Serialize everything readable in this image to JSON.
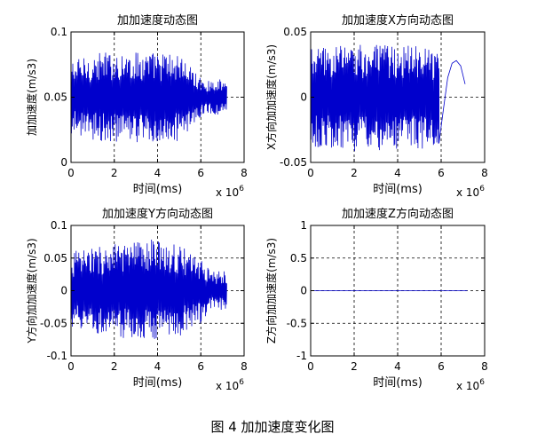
{
  "figure": {
    "caption": "图 4  加加速度变化图"
  },
  "chart_data": [
    {
      "type": "line",
      "title": "加加速度动态图",
      "xlabel": "时间(ms)",
      "ylabel": "加加速度(m/s3)",
      "x_multiplier": "x 10^6",
      "x_multiplier_base": "x 10",
      "x_multiplier_exp": "6",
      "xlim": [
        0,
        8
      ],
      "ylim": [
        0,
        0.1
      ],
      "xticks": [
        "0",
        "2",
        "4",
        "6",
        "8"
      ],
      "yticks": [
        "0",
        "0.05",
        "0.1"
      ],
      "ytick_values": [
        0,
        0.05,
        0.1
      ],
      "grid": true,
      "series": [
        {
          "color": "#0000cc",
          "signal": {
            "kind": "oscillation",
            "x_start": 0,
            "x_end": 7.2,
            "center": 0.05,
            "amplitude_envelope": [
              [
                0,
                0.028
              ],
              [
                1.5,
                0.035
              ],
              [
                3.5,
                0.035
              ],
              [
                5.0,
                0.034
              ],
              [
                5.8,
                0.018
              ],
              [
                6.2,
                0.012
              ],
              [
                6.9,
                0.014
              ],
              [
                7.2,
                0.011
              ]
            ],
            "cycles": 180
          }
        }
      ]
    },
    {
      "type": "line",
      "title": "加加速度X方向动态图",
      "xlabel": "时间(ms)",
      "ylabel": "X方向加加速度(m/s3)",
      "x_multiplier": "x 10^6",
      "x_multiplier_base": "x 10",
      "x_multiplier_exp": "6",
      "xlim": [
        0,
        8
      ],
      "ylim": [
        -0.05,
        0.05
      ],
      "xticks": [
        "0",
        "2",
        "4",
        "6",
        "8"
      ],
      "yticks": [
        "-0.05",
        "0",
        "0.05"
      ],
      "ytick_values": [
        -0.05,
        0,
        0.05
      ],
      "grid": true,
      "series": [
        {
          "color": "#0000cc",
          "signal": {
            "kind": "oscillation",
            "x_start": 0,
            "x_end": 5.9,
            "center": 0,
            "amplitude_envelope": [
              [
                0,
                0.038
              ],
              [
                2.0,
                0.042
              ],
              [
                4.0,
                0.04
              ],
              [
                5.0,
                0.04
              ],
              [
                5.9,
                0.036
              ]
            ],
            "cycles": 150
          },
          "tail": [
            [
              5.9,
              -0.035
            ],
            [
              6.1,
              -0.01
            ],
            [
              6.3,
              0.015
            ],
            [
              6.5,
              0.026
            ],
            [
              6.7,
              0.028
            ],
            [
              6.9,
              0.024
            ],
            [
              7.1,
              0.01
            ]
          ]
        }
      ]
    },
    {
      "type": "line",
      "title": "加加速度Y方向动态图",
      "xlabel": "时间(ms)",
      "ylabel": "Y方向加加速度(m/s3)",
      "x_multiplier": "x 10^6",
      "x_multiplier_base": "x 10",
      "x_multiplier_exp": "6",
      "xlim": [
        0,
        8
      ],
      "ylim": [
        -0.1,
        0.1
      ],
      "xticks": [
        "0",
        "2",
        "4",
        "6",
        "8"
      ],
      "yticks": [
        "-0.1",
        "-0.05",
        "0",
        "0.05",
        "0.1"
      ],
      "ytick_values": [
        -0.1,
        -0.05,
        0,
        0.05,
        0.1
      ],
      "grid": true,
      "series": [
        {
          "color": "#0000cc",
          "signal": {
            "kind": "oscillation",
            "x_start": 0,
            "x_end": 7.2,
            "center": 0,
            "amplitude_envelope": [
              [
                0,
                0.06
              ],
              [
                1.5,
                0.07
              ],
              [
                3.0,
                0.075
              ],
              [
                4.0,
                0.08
              ],
              [
                5.0,
                0.07
              ],
              [
                6.0,
                0.05
              ],
              [
                6.5,
                0.03
              ],
              [
                7.2,
                0.03
              ]
            ],
            "cycles": 180
          }
        }
      ]
    },
    {
      "type": "line",
      "title": "加加速度Z方向动态图",
      "xlabel": "时间(ms)",
      "ylabel": "Z方向加加速度(m/s3)",
      "x_multiplier": "x 10^6",
      "x_multiplier_base": "x 10",
      "x_multiplier_exp": "6",
      "xlim": [
        0,
        8
      ],
      "ylim": [
        -1,
        1
      ],
      "xticks": [
        "0",
        "2",
        "4",
        "6",
        "8"
      ],
      "yticks": [
        "-1",
        "-0.5",
        "0",
        "0.5",
        "1"
      ],
      "ytick_values": [
        -1,
        -0.5,
        0,
        0.5,
        1
      ],
      "grid": true,
      "series": [
        {
          "color": "#0000cc",
          "x": [
            0,
            7.2
          ],
          "y": [
            0,
            0
          ]
        }
      ]
    }
  ]
}
